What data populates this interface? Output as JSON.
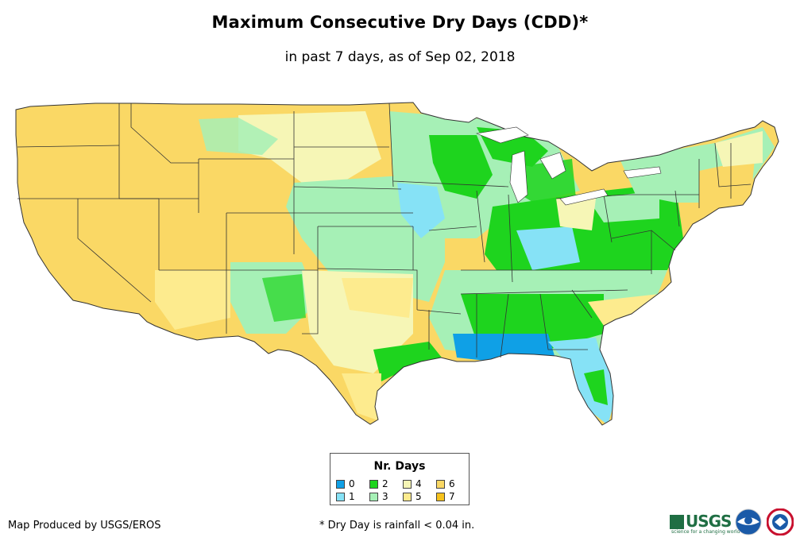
{
  "header": {
    "title": "Maximum Consecutive Dry Days (CDD)*",
    "subtitle": "in past 7 days, as of Sep 02, 2018"
  },
  "legend": {
    "title": "Nr. Days",
    "items": [
      {
        "label": "0",
        "color": "#0fa0e6"
      },
      {
        "label": "1",
        "color": "#86e2f6"
      },
      {
        "label": "2",
        "color": "#1ed41e"
      },
      {
        "label": "3",
        "color": "#a6f0b6"
      },
      {
        "label": "4",
        "color": "#f6f6b6"
      },
      {
        "label": "5",
        "color": "#fdeb8e"
      },
      {
        "label": "6",
        "color": "#fad865"
      },
      {
        "label": "7",
        "color": "#f6c21c"
      }
    ]
  },
  "footer": {
    "credit": "Map Produced by USGS/EROS",
    "footnote": "* Dry Day is rainfall < 0.04 in.",
    "usgs_logo_text": "USGS",
    "usgs_tagline": "science for a changing world",
    "logos": [
      "usgs-logo",
      "noaa-logo",
      "nws-logo"
    ]
  }
}
